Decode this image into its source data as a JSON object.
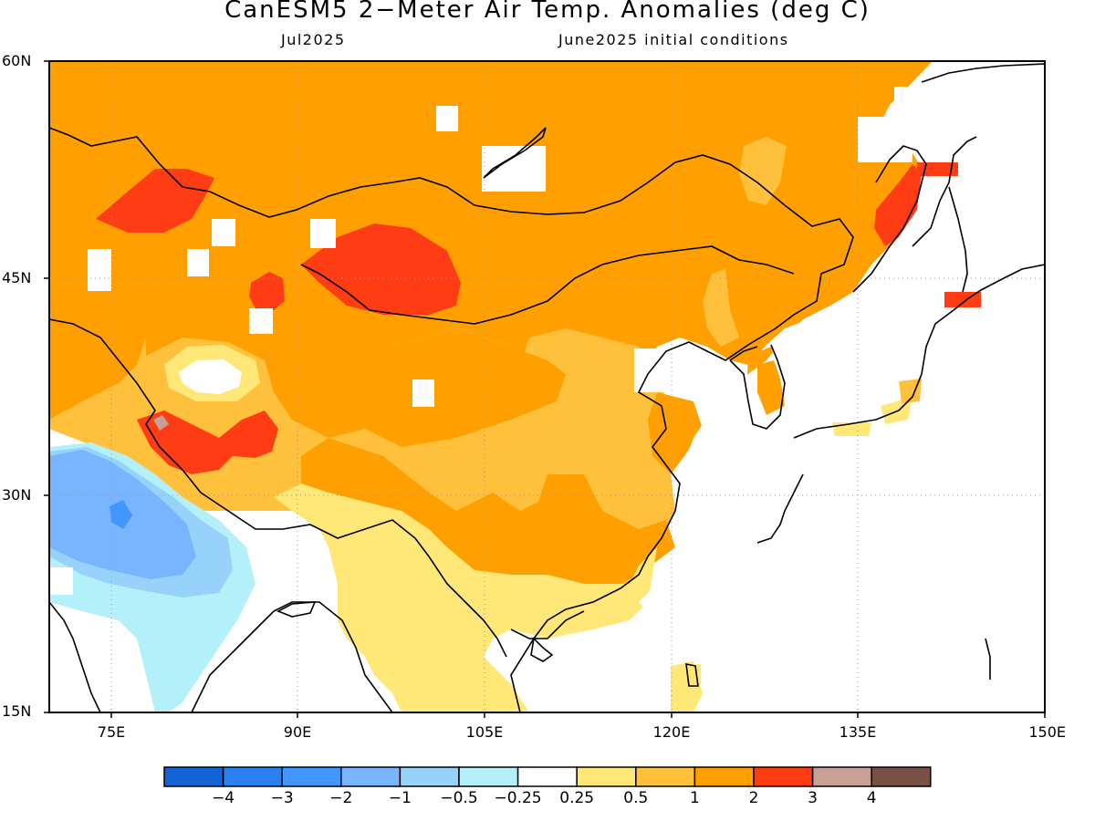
{
  "title": "CanESM5 2−Meter Air Temp. Anomalies (deg C)",
  "subtitle_left": "Jul2025",
  "subtitle_right": "June2025 initial conditions",
  "map": {
    "lon_range": [
      70,
      150
    ],
    "lat_range": [
      15,
      60
    ],
    "lat_labels": [
      "15N",
      "30N",
      "45N",
      "60N"
    ],
    "lon_labels": [
      "75E",
      "90E",
      "105E",
      "120E",
      "135E",
      "150E"
    ]
  },
  "colorbar": {
    "colors": [
      "#1463d6",
      "#2a80ee",
      "#4196ff",
      "#78b4ff",
      "#96d2fa",
      "#b4f0fa",
      "#ffffff",
      "#ffe878",
      "#ffc03c",
      "#ffa000",
      "#ff3c14",
      "#c8a096",
      "#785046"
    ],
    "labels": [
      "−4",
      "−3",
      "−2",
      "−1",
      "−0.5",
      "−0.25",
      "0.25",
      "0.5",
      "1",
      "2",
      "3",
      "4"
    ]
  }
}
